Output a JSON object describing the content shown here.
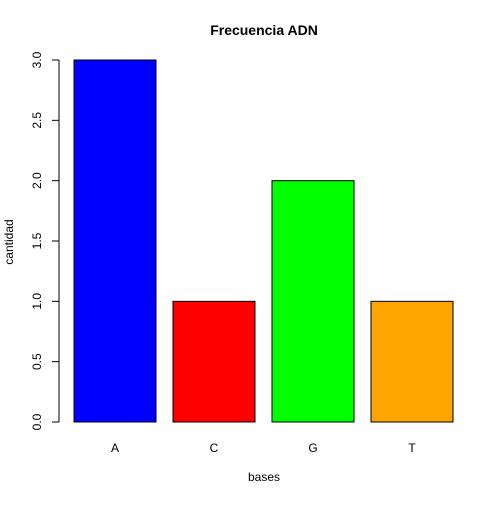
{
  "chart_data": {
    "type": "bar",
    "title": "Frecuencia ADN",
    "xlabel": "bases",
    "ylabel": "cantidad",
    "categories": [
      "A",
      "C",
      "G",
      "T"
    ],
    "values": [
      3,
      1,
      2,
      1
    ],
    "colors": [
      "#0000ff",
      "#ff0000",
      "#00ff00",
      "#ffa500"
    ],
    "ylim": [
      0,
      3
    ],
    "yticks": [
      0.0,
      0.5,
      1.0,
      1.5,
      2.0,
      2.5,
      3.0
    ],
    "ytick_labels": [
      "0.0",
      "0.5",
      "1.0",
      "1.5",
      "2.0",
      "2.5",
      "3.0"
    ],
    "grid": false,
    "legend": false
  }
}
